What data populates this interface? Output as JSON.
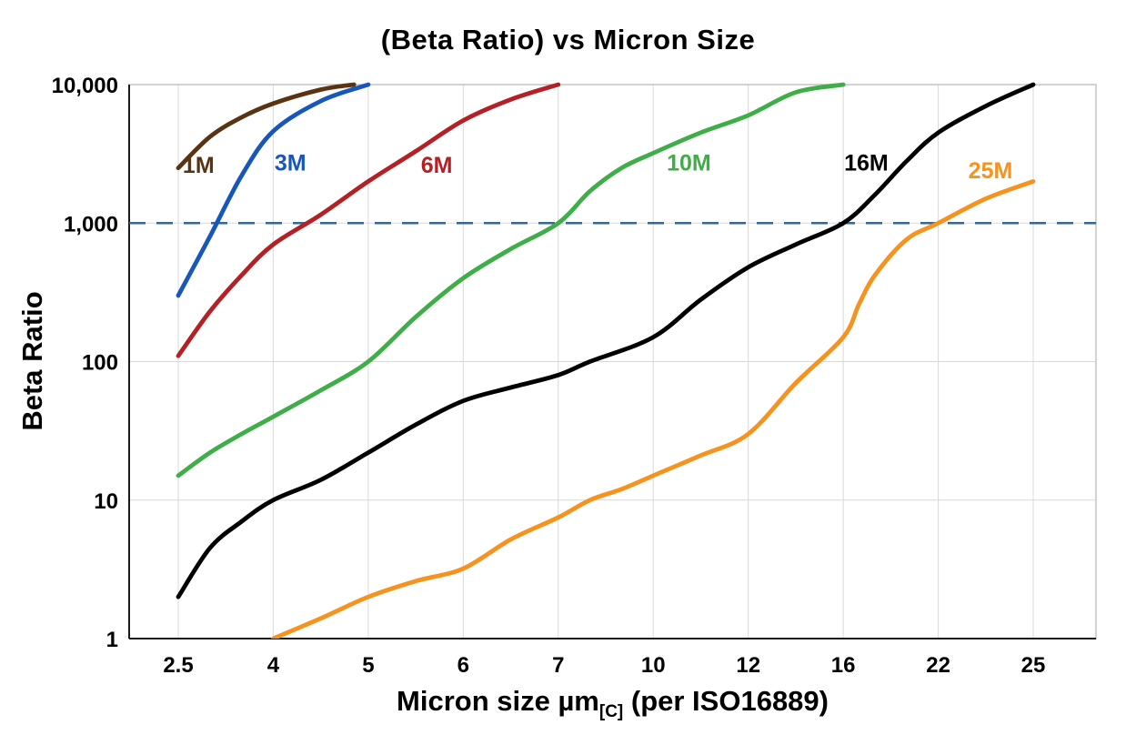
{
  "title": "(Beta Ratio) vs Micron Size",
  "y_axis": {
    "label": "Beta Ratio",
    "ticks": [
      "10,000",
      "1,000",
      "100",
      "10",
      "1"
    ],
    "tick_values": [
      10000,
      1000,
      100,
      10,
      1
    ]
  },
  "x_axis": {
    "label_main": "Micron size µm",
    "label_sub": "[C]",
    "label_suffix": " (per ISO16889)",
    "tick_labels": [
      "2.5",
      "4",
      "5",
      "6",
      "7",
      "10",
      "12",
      "16",
      "22",
      "25"
    ]
  },
  "reference_line": {
    "value": 1000,
    "color": "#38678f",
    "style": "dashed"
  },
  "style": {
    "background": "#ffffff",
    "grid_color": "#d8d8d8",
    "frame_color": "#c4c4c4",
    "axis_color": "#1a1a1a",
    "text_color": "#000000"
  },
  "chart_data": {
    "type": "line",
    "title": "(Beta Ratio) vs Micron Size",
    "xlabel": "Micron size µm[C] (per ISO16889)",
    "ylabel": "Beta Ratio",
    "x_scale": "categorical-even-spacing",
    "y_scale": "log",
    "ylim": [
      1,
      10000
    ],
    "grid": true,
    "legend_position": "inline-labels",
    "categories": [
      2.5,
      4,
      5,
      6,
      7,
      10,
      12,
      16,
      22,
      25
    ],
    "series": [
      {
        "name": "1M",
        "color": "#5a3412",
        "points": [
          [
            2.5,
            2500
          ],
          [
            3,
            4200
          ],
          [
            3.5,
            5800
          ],
          [
            4,
            7300
          ],
          [
            4.5,
            9200
          ],
          [
            4.85,
            10000
          ]
        ],
        "label": {
          "x": 2.82,
          "y": 2300
        }
      },
      {
        "name": "3M",
        "color": "#1757ba",
        "points": [
          [
            2.5,
            300
          ],
          [
            3,
            800
          ],
          [
            3.5,
            2200
          ],
          [
            4,
            4600
          ],
          [
            4.5,
            7600
          ],
          [
            5,
            10000
          ]
        ],
        "label": {
          "x": 4.18,
          "y": 2400
        }
      },
      {
        "name": "6M",
        "color": "#b32025",
        "points": [
          [
            2.5,
            110
          ],
          [
            3,
            230
          ],
          [
            3.5,
            420
          ],
          [
            4,
            700
          ],
          [
            4.5,
            1150
          ],
          [
            5,
            2000
          ],
          [
            5.5,
            3300
          ],
          [
            6,
            5500
          ],
          [
            6.5,
            7800
          ],
          [
            7,
            10000
          ]
        ],
        "label": {
          "x": 5.72,
          "y": 2300
        }
      },
      {
        "name": "10M",
        "color": "#3fae49",
        "points": [
          [
            2.5,
            15
          ],
          [
            3,
            22
          ],
          [
            3.5,
            30
          ],
          [
            4,
            40
          ],
          [
            4.5,
            62
          ],
          [
            5,
            100
          ],
          [
            5.5,
            210
          ],
          [
            6,
            400
          ],
          [
            6.5,
            650
          ],
          [
            7,
            1000
          ],
          [
            8,
            1700
          ],
          [
            9,
            2500
          ],
          [
            10,
            3200
          ],
          [
            11,
            4500
          ],
          [
            12,
            6000
          ],
          [
            14,
            8800
          ],
          [
            16,
            10000
          ]
        ],
        "label": {
          "x": 10.75,
          "y": 2400
        }
      },
      {
        "name": "16M",
        "color": "#000000",
        "points": [
          [
            2.5,
            2
          ],
          [
            3,
            4.5
          ],
          [
            3.5,
            7
          ],
          [
            4,
            10
          ],
          [
            4.5,
            14
          ],
          [
            5,
            22
          ],
          [
            5.5,
            35
          ],
          [
            6,
            52
          ],
          [
            6.5,
            65
          ],
          [
            7,
            80
          ],
          [
            8,
            100
          ],
          [
            10,
            150
          ],
          [
            11,
            280
          ],
          [
            12,
            480
          ],
          [
            14,
            700
          ],
          [
            16,
            1000
          ],
          [
            18,
            1600
          ],
          [
            20,
            2800
          ],
          [
            22,
            4500
          ],
          [
            23.5,
            7000
          ],
          [
            25,
            10000
          ]
        ],
        "label": {
          "x": 17.45,
          "y": 2400
        }
      },
      {
        "name": "25M",
        "color": "#f6921e",
        "points": [
          [
            4,
            1
          ],
          [
            4.5,
            1.4
          ],
          [
            5,
            2
          ],
          [
            5.5,
            2.6
          ],
          [
            6,
            3.2
          ],
          [
            6.5,
            5.2
          ],
          [
            7,
            7.5
          ],
          [
            8,
            10
          ],
          [
            9,
            12
          ],
          [
            10,
            15
          ],
          [
            11,
            21
          ],
          [
            12,
            30
          ],
          [
            14,
            70
          ],
          [
            16,
            150
          ],
          [
            17,
            260
          ],
          [
            18,
            420
          ],
          [
            20,
            760
          ],
          [
            22,
            1000
          ],
          [
            23.5,
            1500
          ],
          [
            25,
            2000
          ]
        ],
        "label": {
          "x": 23.65,
          "y": 2100
        }
      }
    ]
  }
}
